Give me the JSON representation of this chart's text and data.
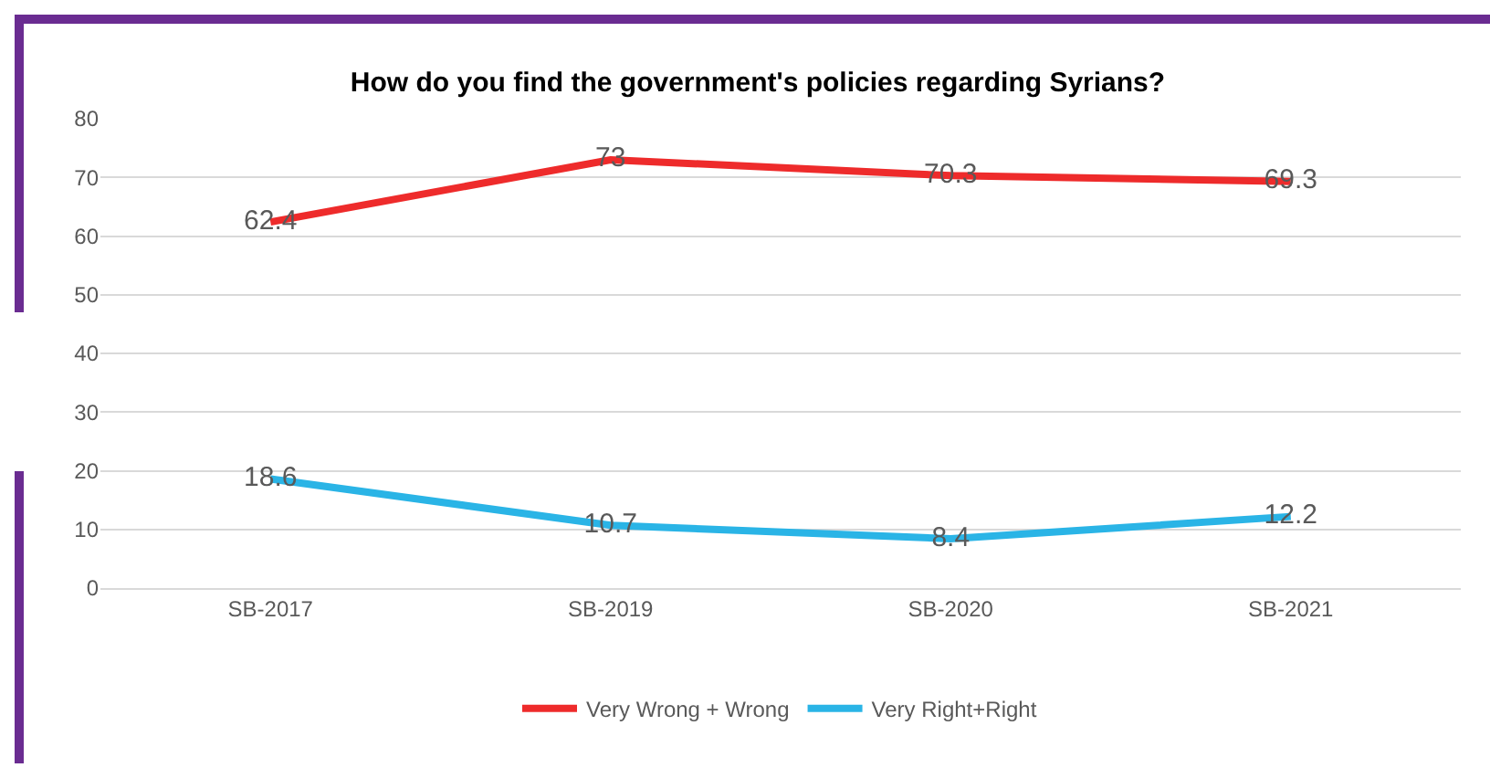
{
  "chart_data": {
    "type": "line",
    "title": "How do you find the government's policies regarding Syrians?",
    "categories": [
      "SB-2017",
      "SB-2019",
      "SB-2020",
      "SB-2021"
    ],
    "series": [
      {
        "name": "Very Wrong + Wrong",
        "color": "#ee2b2b",
        "values": [
          62.4,
          73,
          70.3,
          69.3
        ]
      },
      {
        "name": "Very Right+Right",
        "color": "#2ab4e6",
        "values": [
          18.6,
          10.7,
          8.4,
          12.2
        ]
      }
    ],
    "ylim": [
      0,
      80
    ],
    "yticks": [
      0,
      10,
      20,
      30,
      40,
      50,
      60,
      70,
      80
    ],
    "grid": "y",
    "legend": "bottom",
    "marker": "none",
    "line_style": "solid",
    "data_labels": true
  }
}
